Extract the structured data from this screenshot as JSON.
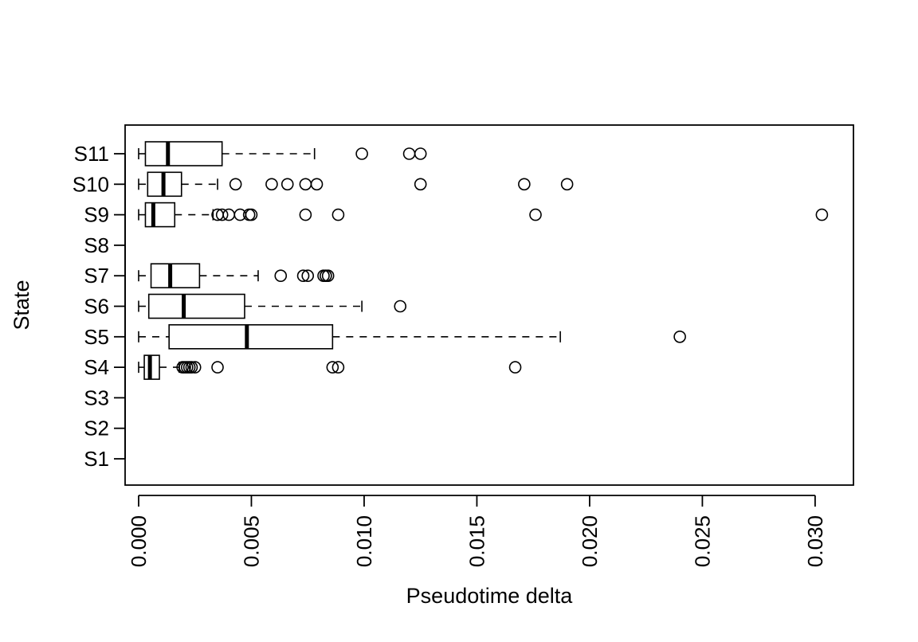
{
  "chart_data": {
    "type": "boxplot",
    "orientation": "horizontal",
    "xlabel": "Pseudotime delta",
    "ylabel": "State",
    "xlim": [
      -0.0006,
      0.0317
    ],
    "xticks": [
      0.0,
      0.005,
      0.01,
      0.015,
      0.02,
      0.025,
      0.03
    ],
    "xtick_labels": [
      "0.000",
      "0.005",
      "0.010",
      "0.015",
      "0.020",
      "0.025",
      "0.030"
    ],
    "xtick_rotation": "vertical",
    "categories": [
      "S1",
      "S2",
      "S3",
      "S4",
      "S5",
      "S6",
      "S7",
      "S8",
      "S9",
      "S10",
      "S11"
    ],
    "boxes": [
      {
        "category": "S1",
        "empty": true
      },
      {
        "category": "S2",
        "empty": true
      },
      {
        "category": "S3",
        "empty": true
      },
      {
        "category": "S4",
        "whisker_low": 0.0,
        "q1": 0.00025,
        "median": 0.0005,
        "q3": 0.00092,
        "whisker_high": 0.0018,
        "outliers": [
          0.00195,
          0.00205,
          0.00215,
          0.00225,
          0.00235,
          0.0025,
          0.0035,
          0.0086,
          0.00885,
          0.0167
        ]
      },
      {
        "category": "S5",
        "whisker_low": 0.0,
        "q1": 0.00135,
        "median": 0.0048,
        "q3": 0.0086,
        "whisker_high": 0.0187,
        "outliers": [
          0.024
        ]
      },
      {
        "category": "S6",
        "whisker_low": 0.0,
        "q1": 0.00045,
        "median": 0.002,
        "q3": 0.0047,
        "whisker_high": 0.0099,
        "outliers": [
          0.0116
        ]
      },
      {
        "category": "S7",
        "whisker_low": 0.0,
        "q1": 0.00055,
        "median": 0.0014,
        "q3": 0.0027,
        "whisker_high": 0.0053,
        "outliers": [
          0.0063,
          0.0073,
          0.0075,
          0.0082,
          0.0083,
          0.0084
        ]
      },
      {
        "category": "S8",
        "empty": true
      },
      {
        "category": "S9",
        "whisker_low": 0.0,
        "q1": 0.0003,
        "median": 0.00065,
        "q3": 0.0016,
        "whisker_high": 0.0033,
        "outliers": [
          0.0035,
          0.0037,
          0.004,
          0.0045,
          0.0049,
          0.005,
          0.0074,
          0.00885,
          0.0176,
          0.0303
        ]
      },
      {
        "category": "S10",
        "whisker_low": 0.0,
        "q1": 0.0004,
        "median": 0.0011,
        "q3": 0.0019,
        "whisker_high": 0.0035,
        "outliers": [
          0.0043,
          0.0059,
          0.0066,
          0.0074,
          0.0079,
          0.0125,
          0.0171,
          0.019
        ]
      },
      {
        "category": "S11",
        "whisker_low": 0.0,
        "q1": 0.0003,
        "median": 0.0013,
        "q3": 0.0037,
        "whisker_high": 0.0078,
        "outliers": [
          0.0099,
          0.012,
          0.0125
        ]
      }
    ],
    "grid": false,
    "legend": "none"
  }
}
